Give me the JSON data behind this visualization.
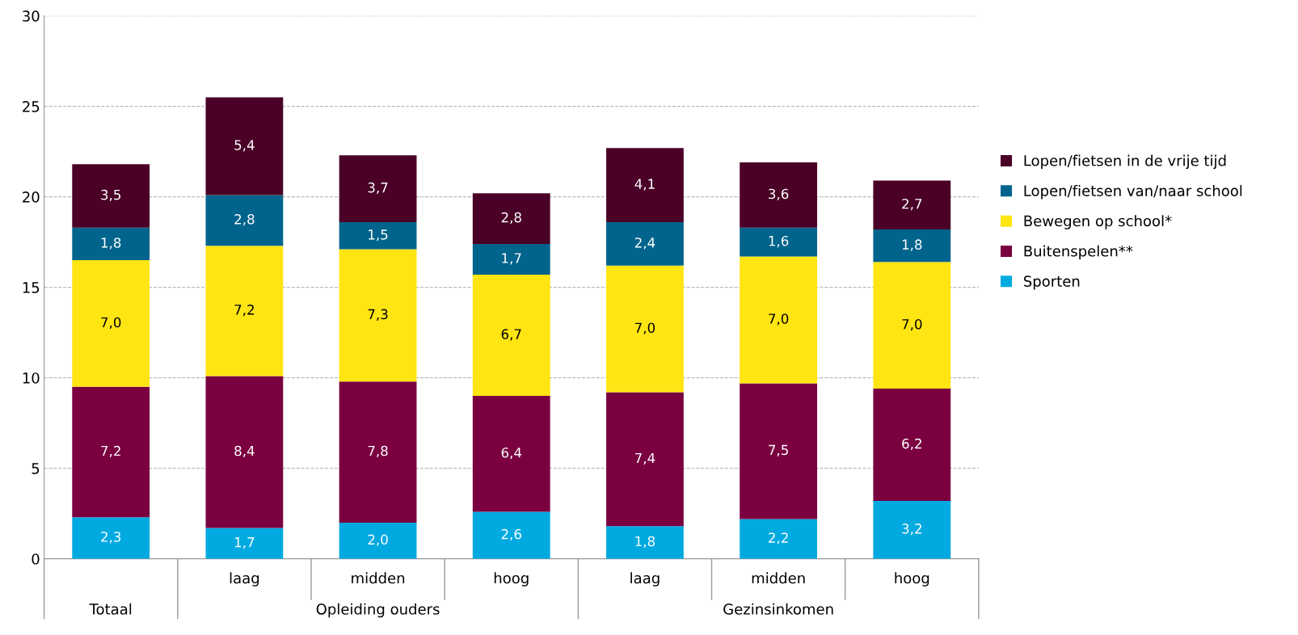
{
  "chart_data": {
    "type": "bar",
    "stacked": true,
    "categories": [
      null,
      "laag",
      "midden",
      "hoog",
      "laag",
      "midden",
      "hoog"
    ],
    "series": [
      {
        "name": "Sporten",
        "color": "#00a9e0",
        "values": [
          2.3,
          1.7,
          2.0,
          2.6,
          1.8,
          2.2,
          3.2
        ],
        "value_labels": [
          "2,3",
          "1,7",
          "2,0",
          "2,6",
          "1,8",
          "2,2",
          "3,2"
        ]
      },
      {
        "name": "Buitenspelen**",
        "color": "#7a0040",
        "values": [
          7.2,
          8.4,
          7.8,
          6.4,
          7.4,
          7.5,
          6.2
        ],
        "value_labels": [
          "7,2",
          "8,4",
          "7,8",
          "6,4",
          "7,4",
          "7,5",
          "6,2"
        ]
      },
      {
        "name": "Bewegen op school*",
        "color": "#ffe512",
        "values": [
          7.0,
          7.2,
          7.3,
          6.7,
          7.0,
          7.0,
          7.0
        ],
        "value_labels": [
          "7,0",
          "7,2",
          "7,3",
          "6,7",
          "7,0",
          "7,0",
          "7,0"
        ]
      },
      {
        "name": "Lopen/fietsen van/naar school",
        "color": "#00648c",
        "values": [
          1.8,
          2.8,
          1.5,
          1.7,
          2.4,
          1.6,
          1.8
        ],
        "value_labels": [
          "1,8",
          "2,8",
          "1,5",
          "1,7",
          "2,4",
          "1,6",
          "1,8"
        ]
      },
      {
        "name": "Lopen/fietsen in de vrije tijd",
        "color": "#4a0027",
        "values": [
          3.5,
          5.4,
          3.7,
          2.8,
          4.1,
          3.6,
          2.7
        ],
        "value_labels": [
          "3,5",
          "5,4",
          "3,7",
          "2,8",
          "4,1",
          "3,6",
          "2,7"
        ]
      }
    ],
    "ylim": [
      0,
      30
    ],
    "yticks": [
      0,
      5,
      10,
      15,
      20,
      25,
      30
    ],
    "grid": "y",
    "legend": "right",
    "annotations": [
      "Totaal",
      "Opleiding ouders",
      "Gezinsinkomen"
    ]
  }
}
